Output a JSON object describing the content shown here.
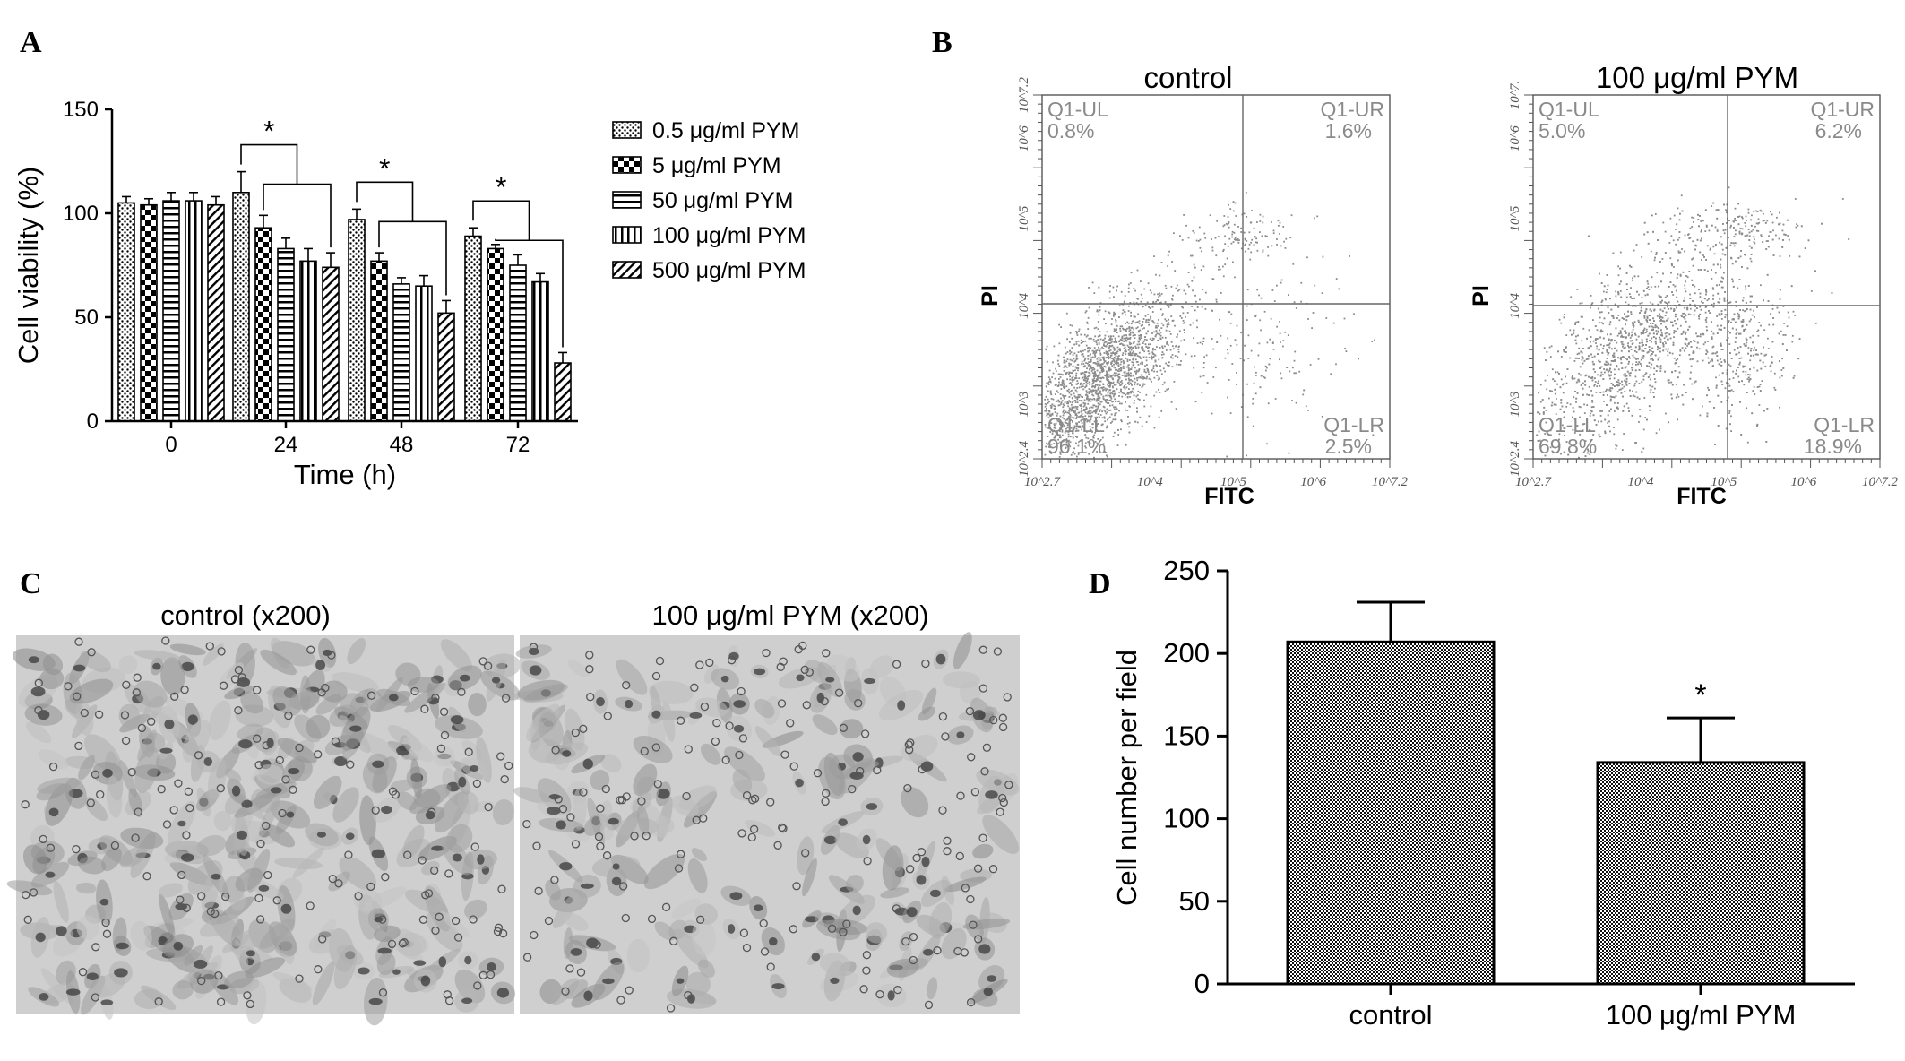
{
  "panels": {
    "a": "A",
    "b": "B",
    "c": "C",
    "d": "D"
  },
  "chart_data": [
    {
      "panel": "A",
      "type": "bar",
      "xlabel": "Time (h)",
      "ylabel": "Cell viability (%)",
      "ylim": [
        0,
        150
      ],
      "yticks": [
        "0",
        "50",
        "100",
        "150"
      ],
      "categories": [
        "0",
        "24",
        "48",
        "72"
      ],
      "series": [
        {
          "name": "0.5 μg/ml PYM",
          "values": [
            105,
            110,
            97,
            89
          ],
          "errors": [
            3,
            10,
            5,
            4
          ]
        },
        {
          "name": "5 μg/ml PYM",
          "values": [
            104,
            93,
            77,
            83
          ],
          "errors": [
            3,
            6,
            4,
            2
          ]
        },
        {
          "name": "50 μg/ml PYM",
          "values": [
            106,
            83,
            66,
            75
          ],
          "errors": [
            4,
            5,
            3,
            5
          ]
        },
        {
          "name": "100 μg/ml PYM",
          "values": [
            106,
            77,
            65,
            67
          ],
          "errors": [
            4,
            6,
            5,
            4
          ]
        },
        {
          "name": "500 μg/ml PYM",
          "values": [
            104,
            74,
            52,
            28
          ],
          "errors": [
            4,
            7,
            6,
            5
          ]
        }
      ],
      "significance": [
        "*",
        "*",
        "*"
      ],
      "legend_position": "right"
    },
    {
      "panel": "B",
      "type": "scatter",
      "plots": [
        {
          "title": "control",
          "xlabel": "FITC",
          "ylabel": "PI",
          "quadrants": {
            "ul_label": "Q1-UL",
            "ul_value": "0.8%",
            "ur_label": "Q1-UR",
            "ur_value": "1.6%",
            "ll_label": "Q1-LL",
            "ll_value": "96.1%",
            "lr_label": "Q1-LR",
            "lr_value": "2.5%"
          },
          "xticks": [
            "10^2.7",
            "10^4",
            "10^5",
            "10^6",
            "10^7.2"
          ],
          "yticks": [
            "10^2.4",
            "10^3",
            "10^4",
            "10^5",
            "10^6",
            "10^7.2"
          ]
        },
        {
          "title": "100 μg/ml PYM",
          "xlabel": "FITC",
          "ylabel": "PI",
          "quadrants": {
            "ul_label": "Q1-UL",
            "ul_value": "5.0%",
            "ur_label": "Q1-UR",
            "ur_value": "6.2%",
            "ll_label": "Q1-LL",
            "ll_value": "69.8%",
            "lr_label": "Q1-LR",
            "lr_value": "18.9%"
          },
          "xticks": [
            "10^2.7",
            "10^4",
            "10^5",
            "10^6",
            "10^7.2"
          ],
          "yticks": [
            "10^2.4",
            "10^3",
            "10^4",
            "10^5",
            "10^6",
            "10^7."
          ]
        }
      ]
    },
    {
      "panel": "D",
      "type": "bar",
      "xlabel": "",
      "ylabel": "Cell number per field",
      "ylim": [
        0,
        250
      ],
      "yticks": [
        "0",
        "50",
        "100",
        "150",
        "200",
        "250"
      ],
      "categories": [
        "control",
        "100 μg/ml PYM"
      ],
      "values": [
        207,
        134
      ],
      "errors": [
        24,
        27
      ],
      "significance": [
        "",
        "*"
      ]
    }
  ],
  "micrographs": {
    "left_title": "control (x200)",
    "right_title": "100 μg/ml PYM (x200)"
  },
  "colors": {
    "scatter_dots": "#8c8c8c",
    "micrograph_bg": "#cfcfcf"
  }
}
